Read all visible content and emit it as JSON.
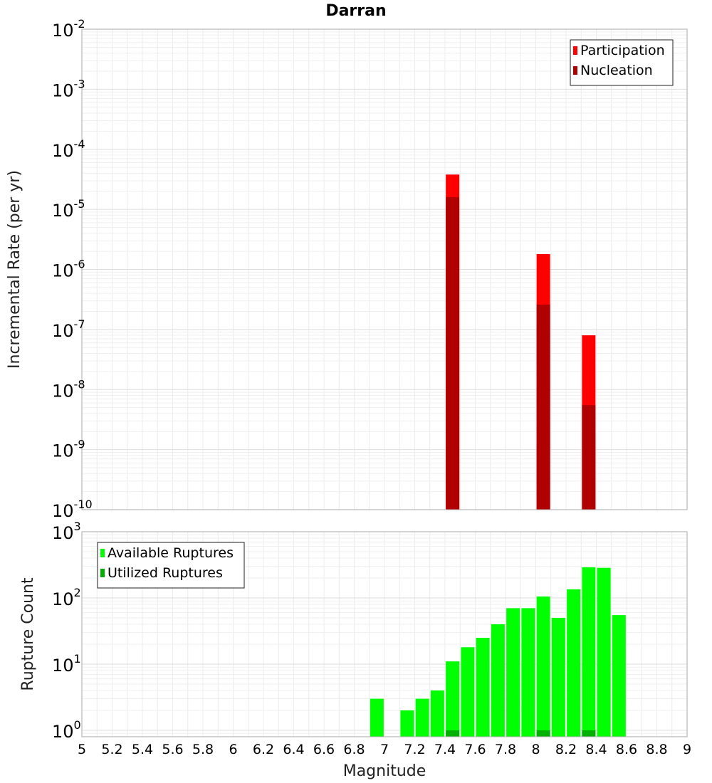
{
  "chart_data": [
    {
      "type": "bar",
      "title": "Darran",
      "ylabel": "Incremental Rate (per yr)",
      "yscale": "log",
      "ylim": [
        1e-10,
        0.01
      ],
      "xlim": [
        5,
        9
      ],
      "y_tick_labels": [
        {
          "base": "10",
          "exp": "-10"
        },
        {
          "base": "10",
          "exp": "-9"
        },
        {
          "base": "10",
          "exp": "-8"
        },
        {
          "base": "10",
          "exp": "-7"
        },
        {
          "base": "10",
          "exp": "-6"
        },
        {
          "base": "10",
          "exp": "-5"
        },
        {
          "base": "10",
          "exp": "-4"
        },
        {
          "base": "10",
          "exp": "-3"
        },
        {
          "base": "10",
          "exp": "-2"
        }
      ],
      "legend_position": "top-right",
      "grid": true,
      "series": [
        {
          "name": "Participation",
          "color": "#ff0000",
          "points": [
            {
              "x": 7.45,
              "y": 3.8e-05
            },
            {
              "x": 8.05,
              "y": 1.8e-06
            },
            {
              "x": 8.35,
              "y": 8e-08
            }
          ]
        },
        {
          "name": "Nucleation",
          "color": "#b00000",
          "points": [
            {
              "x": 7.45,
              "y": 1.6e-05
            },
            {
              "x": 8.05,
              "y": 2.6e-07
            },
            {
              "x": 8.35,
              "y": 5.5e-09
            }
          ]
        }
      ]
    },
    {
      "type": "bar",
      "xlabel": "Magnitude",
      "ylabel": "Rupture Count",
      "yscale": "log",
      "ylim": [
        0.8,
        1000
      ],
      "xlim": [
        5,
        9
      ],
      "x_tick_labels": [
        "5",
        "5.2",
        "5.4",
        "5.6",
        "5.8",
        "6",
        "6.2",
        "6.4",
        "6.6",
        "6.8",
        "7",
        "7.2",
        "7.4",
        "7.6",
        "7.8",
        "8",
        "8.2",
        "8.4",
        "8.6",
        "8.8",
        "9"
      ],
      "y_tick_labels": [
        {
          "base": "10",
          "exp": "0"
        },
        {
          "base": "10",
          "exp": "1"
        },
        {
          "base": "10",
          "exp": "2"
        },
        {
          "base": "10",
          "exp": "3"
        }
      ],
      "legend_position": "top-left",
      "grid": true,
      "series": [
        {
          "name": "Available Ruptures",
          "color": "#00ff00",
          "points": [
            {
              "x": 6.95,
              "y": 3
            },
            {
              "x": 7.15,
              "y": 2
            },
            {
              "x": 7.25,
              "y": 3
            },
            {
              "x": 7.35,
              "y": 4
            },
            {
              "x": 7.45,
              "y": 11
            },
            {
              "x": 7.55,
              "y": 18
            },
            {
              "x": 7.65,
              "y": 25
            },
            {
              "x": 7.75,
              "y": 40
            },
            {
              "x": 7.85,
              "y": 70
            },
            {
              "x": 7.95,
              "y": 70
            },
            {
              "x": 8.05,
              "y": 105
            },
            {
              "x": 8.15,
              "y": 50
            },
            {
              "x": 8.25,
              "y": 135
            },
            {
              "x": 8.35,
              "y": 290
            },
            {
              "x": 8.45,
              "y": 285
            },
            {
              "x": 8.55,
              "y": 55
            }
          ]
        },
        {
          "name": "Utilized Ruptures",
          "color": "#00b000",
          "points": [
            {
              "x": 7.45,
              "y": 1
            },
            {
              "x": 8.05,
              "y": 1
            },
            {
              "x": 8.35,
              "y": 1
            }
          ]
        }
      ]
    }
  ]
}
